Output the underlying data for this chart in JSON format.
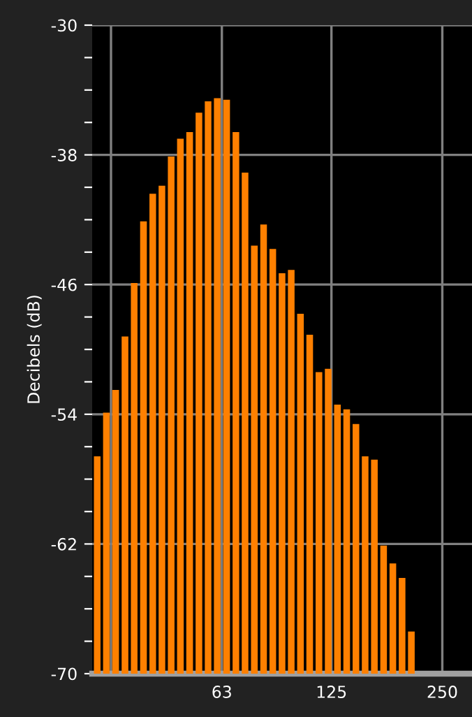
{
  "chart_data": {
    "type": "bar",
    "ylabel": "Decibels (dB)",
    "x": [
      28.9,
      30.6,
      32.4,
      34.4,
      36.4,
      38.6,
      40.9,
      43.3,
      45.9,
      48.6,
      51.5,
      54.6,
      57.8,
      61.2,
      64.9,
      68.8,
      72.8,
      77.2,
      81.8,
      86.6,
      91.8,
      97.2,
      103,
      109.1,
      115.6,
      122.5,
      129.8,
      137.5,
      145.7,
      154.3,
      163.5,
      173.2,
      183.5,
      194.4,
      206
    ],
    "base": [
      -70,
      -70,
      -70,
      -70,
      -70,
      -70,
      -70,
      -70,
      -70,
      -70,
      -70,
      -70,
      -70,
      -70,
      -70,
      -70,
      -70,
      -70,
      -70,
      -70,
      -70,
      -70,
      -70,
      -70,
      -70,
      -70,
      -70,
      -70,
      -70,
      -70,
      -70,
      -70,
      -70,
      -70,
      -70
    ],
    "values": [
      13.4,
      16.1,
      17.5,
      20.8,
      24.1,
      27.9,
      29.6,
      30.1,
      31.9,
      33.0,
      33.4,
      34.6,
      35.3,
      35.5,
      35.4,
      33.4,
      30.9,
      26.4,
      27.7,
      26.2,
      24.7,
      24.9,
      22.2,
      20.9,
      18.6,
      18.8,
      16.6,
      16.3,
      15.4,
      13.4,
      13.2,
      7.9,
      6.8,
      5.9,
      2.6
    ],
    "color": "#ff8000",
    "log": "x",
    "xlim": [
      28.0,
      301
    ],
    "xticks": [
      {
        "value": 31.5,
        "label": null
      },
      63,
      125,
      250
    ],
    "ylim": [
      -70,
      -30
    ],
    "yticks": [
      -30,
      {
        "value": -32,
        "label": null
      },
      {
        "value": -34,
        "label": null
      },
      {
        "value": -36,
        "label": null
      },
      -38,
      {
        "value": -40,
        "label": null
      },
      {
        "value": -42,
        "label": null
      },
      {
        "value": -44,
        "label": null
      },
      -46,
      {
        "value": -48,
        "label": null
      },
      {
        "value": -50,
        "label": null
      },
      {
        "value": -52,
        "label": null
      },
      -54,
      {
        "value": -56,
        "label": null
      },
      {
        "value": -58,
        "label": null
      },
      {
        "value": -60,
        "label": null
      },
      -62,
      {
        "value": -64,
        "label": null
      },
      {
        "value": -66,
        "label": null
      },
      {
        "value": -68,
        "label": null
      },
      -70
    ],
    "grid": true
  }
}
